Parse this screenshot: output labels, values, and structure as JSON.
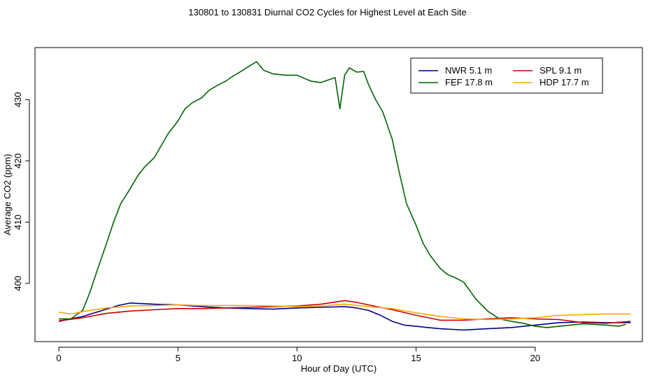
{
  "chart_data": {
    "type": "line",
    "title": "130801  to  130831 Diurnal CO2 Cycles for Highest Level at Each Site",
    "xlabel": "Hour of Day (UTC)",
    "ylabel": "Average CO2 (ppm)",
    "xlim": [
      -1,
      24.5
    ],
    "ylim": [
      390.5,
      438.5
    ],
    "xticks": [
      0,
      5,
      10,
      15,
      20
    ],
    "yticks": [
      400,
      410,
      420,
      430
    ],
    "xtick_labels": [
      "0",
      "5",
      "10",
      "15",
      "20"
    ],
    "ytick_labels": [
      "400",
      "410",
      "420",
      "430"
    ],
    "legend_position": "top-right",
    "series": [
      {
        "name": "NWR",
        "label": "NWR   5.1 m",
        "color": "#00008b",
        "x": [
          0,
          1,
          2,
          2.5,
          3,
          4,
          5,
          6,
          7,
          8,
          9,
          10,
          11,
          12,
          12.5,
          13,
          13.5,
          14,
          14.5,
          15,
          15.5,
          16,
          16.5,
          17,
          18,
          19,
          20,
          21,
          22,
          23,
          24
        ],
        "y": [
          393.8,
          394.6,
          395.8,
          396.4,
          396.8,
          396.6,
          396.5,
          396.2,
          396.0,
          395.9,
          395.8,
          396.0,
          396.1,
          396.2,
          396.0,
          395.6,
          394.8,
          393.8,
          393.2,
          393.0,
          392.8,
          392.6,
          392.5,
          392.4,
          392.6,
          392.8,
          393.2,
          393.6,
          393.7,
          393.6,
          393.6
        ]
      },
      {
        "name": "SPL",
        "label": "SPL   9.1 m",
        "color": "#cc0000",
        "x": [
          0,
          1,
          2,
          3,
          4,
          5,
          6,
          7,
          8,
          9,
          10,
          11,
          12,
          12.5,
          13,
          14,
          15,
          16,
          17,
          18,
          19,
          20,
          21,
          22,
          23,
          24
        ],
        "y": [
          393.9,
          394.4,
          395.1,
          395.5,
          395.7,
          395.9,
          395.9,
          396.0,
          396.1,
          396.2,
          396.3,
          396.6,
          397.2,
          396.9,
          396.5,
          395.7,
          394.8,
          394.0,
          394.0,
          394.2,
          394.4,
          394.2,
          394.1,
          393.6,
          393.5,
          393.8
        ]
      },
      {
        "name": "FEF",
        "label": "FEF   17.8 m",
        "color": "#006400",
        "x": [
          0,
          0.5,
          1,
          1.3,
          1.6,
          2,
          2.3,
          2.6,
          3,
          3.3,
          3.6,
          4,
          4.3,
          4.6,
          5,
          5.3,
          5.6,
          6,
          6.3,
          6.6,
          7,
          7.3,
          7.6,
          8,
          8.3,
          8.6,
          9,
          9.5,
          10,
          10.3,
          10.6,
          11,
          11.3,
          11.6,
          11.8,
          12,
          12.2,
          12.5,
          12.8,
          13,
          13.3,
          13.6,
          14,
          14.3,
          14.6,
          15,
          15.3,
          15.6,
          16,
          16.3,
          16.6,
          17,
          17.5,
          18,
          18.5,
          19,
          19.5,
          20,
          20.5,
          21,
          21.5,
          22,
          22.5,
          23,
          23.5,
          23.8
        ],
        "y": [
          394.2,
          394.2,
          395.6,
          398.5,
          402.0,
          406.5,
          410.0,
          413.0,
          415.5,
          417.5,
          419.0,
          420.5,
          422.5,
          424.5,
          426.5,
          428.5,
          429.5,
          430.3,
          431.5,
          432.2,
          433.0,
          433.8,
          434.5,
          435.5,
          436.2,
          434.8,
          434.2,
          434.0,
          434.0,
          433.5,
          433.0,
          432.8,
          433.2,
          433.6,
          428.5,
          434.0,
          435.2,
          434.5,
          434.6,
          432.5,
          430.0,
          428.0,
          423.5,
          418.0,
          413.0,
          409.5,
          406.5,
          404.5,
          402.5,
          401.5,
          401.0,
          400.2,
          397.5,
          395.5,
          394.2,
          393.8,
          393.5,
          393.0,
          392.8,
          393.0,
          393.2,
          393.4,
          393.3,
          393.2,
          393.0,
          393.3
        ]
      },
      {
        "name": "HDP",
        "label": "HDP   17.7 m",
        "color": "#ffa500",
        "x": [
          0,
          0.5,
          1,
          2,
          3,
          4,
          5,
          6,
          7,
          8,
          9,
          10,
          11,
          12,
          13,
          14,
          15,
          16,
          17,
          18,
          19,
          20,
          21,
          22,
          23,
          24
        ],
        "y": [
          395.3,
          395.0,
          395.4,
          396.0,
          396.3,
          396.4,
          396.5,
          396.4,
          396.4,
          396.4,
          396.3,
          396.2,
          396.3,
          396.6,
          396.2,
          395.9,
          395.2,
          394.6,
          394.2,
          394.1,
          394.2,
          394.4,
          394.8,
          394.9,
          395.0,
          395.0
        ]
      }
    ]
  }
}
